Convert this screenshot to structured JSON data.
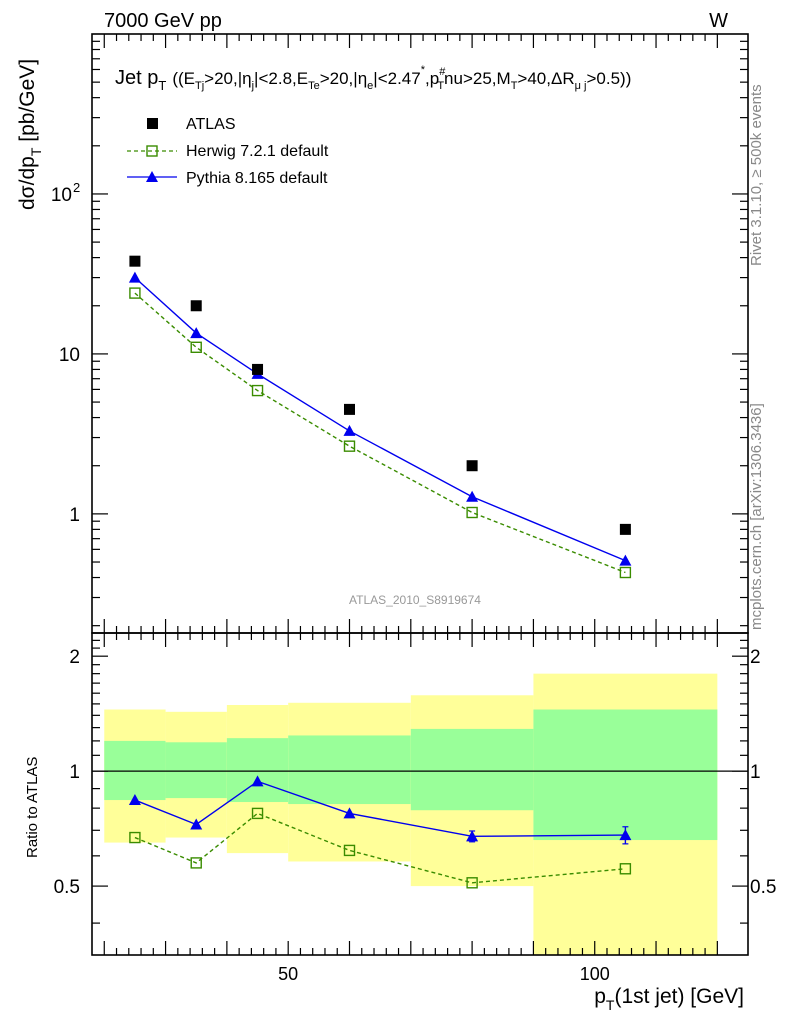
{
  "header": {
    "left": "7000 GeV pp",
    "right": "W"
  },
  "side_labels": {
    "rivet": "Rivet 3.1.10, ≥ 500k events",
    "mcplots": "mcplots.cern.ch [arXiv:1306.3436]"
  },
  "analysis_id": "ATLAS_2010_S8919674",
  "colors": {
    "atlas": "#000000",
    "herwig": "#3a8c00",
    "pythia": "#0000ee",
    "band_yellow": "#ffff99",
    "band_green": "#99ff99"
  },
  "chart_data": [
    {
      "type": "scatter",
      "title": "Jet p_T ((E_Tj>20,|η_j|<2.8,E_Te>20,|η_e|<2.47^*,p_T^#nu>25,M_T>40,ΔR_μj>0.5))",
      "title_parts": {
        "main": "Jet p",
        "main_sub": "T",
        "cut": "((E",
        "s1": "Tj",
        "t1": ">20,|η",
        "s2": "j",
        "t2": "|<2.8,E",
        "s3": "Te",
        "t3": ">20,|η",
        "s4": "e",
        "t4": "|<2.47",
        "sup4": "*",
        "t5": ",p",
        "sup5": "#",
        "s5": "T",
        "t6": "nu>25,M",
        "s6": "T",
        "t7": ">40,ΔR",
        "s7": "μ j",
        "t8": ">0.5))"
      },
      "ylabel": "dσ/dp_T [pb/GeV]",
      "ylabel_parts": {
        "a": "dσ/dp",
        "sub": "T",
        "b": " [pb/GeV]"
      },
      "yscale": "log",
      "ylim": [
        0.18,
        1000
      ],
      "xlim": [
        18,
        125
      ],
      "ytick_labels": [
        {
          "value": 1,
          "label": "1"
        },
        {
          "value": 10,
          "label": "10"
        },
        {
          "value": 100,
          "label": "10",
          "sup": "2"
        }
      ],
      "legend": {
        "placement": "top-left",
        "entries": [
          "ATLAS",
          "Herwig 7.2.1 default",
          "Pythia 8.165 default"
        ]
      },
      "series": [
        {
          "name": "ATLAS",
          "marker": "square-filled",
          "x": [
            25,
            35,
            45,
            60,
            80,
            105
          ],
          "y": [
            38,
            20,
            8.0,
            4.5,
            2.0,
            0.8
          ]
        },
        {
          "name": "Herwig 7.2.1 default",
          "marker": "square-open",
          "line": "dashed",
          "x": [
            25,
            35,
            45,
            60,
            80,
            105
          ],
          "y": [
            24,
            11,
            5.9,
            2.65,
            1.02,
            0.43
          ]
        },
        {
          "name": "Pythia 8.165 default",
          "marker": "triangle",
          "line": "solid",
          "x": [
            25,
            35,
            45,
            60,
            80,
            105
          ],
          "y": [
            30,
            13.5,
            7.5,
            3.3,
            1.28,
            0.51
          ]
        }
      ]
    },
    {
      "type": "line",
      "ylabel": "Ratio to ATLAS",
      "xlabel": "p_T(1st jet) [GeV]",
      "xlabel_parts": {
        "a": "p",
        "sub": "T",
        "b": "(1st jet) [GeV]"
      },
      "xlim": [
        18,
        125
      ],
      "ylim": [
        0.33,
        2.3
      ],
      "yscale": "log",
      "xticks": [
        {
          "value": 50,
          "label": "50"
        },
        {
          "value": 100,
          "label": "100"
        }
      ],
      "yticks": [
        {
          "value": 0.5,
          "label": "0.5"
        },
        {
          "value": 1,
          "label": "1"
        },
        {
          "value": 2,
          "label": "2"
        }
      ],
      "reference_line": 1,
      "bands": [
        {
          "x0": 20,
          "x1": 30,
          "yellow": [
            0.65,
            1.45
          ],
          "green": [
            0.84,
            1.2
          ]
        },
        {
          "x0": 30,
          "x1": 40,
          "yellow": [
            0.67,
            1.43
          ],
          "green": [
            0.85,
            1.19
          ]
        },
        {
          "x0": 40,
          "x1": 50,
          "yellow": [
            0.61,
            1.49
          ],
          "green": [
            0.83,
            1.22
          ]
        },
        {
          "x0": 50,
          "x1": 70,
          "yellow": [
            0.58,
            1.51
          ],
          "green": [
            0.82,
            1.24
          ]
        },
        {
          "x0": 70,
          "x1": 90,
          "yellow": [
            0.5,
            1.58
          ],
          "green": [
            0.79,
            1.29
          ]
        },
        {
          "x0": 90,
          "x1": 120,
          "yellow": [
            0.33,
            1.8
          ],
          "green": [
            0.66,
            1.45
          ]
        }
      ],
      "series": [
        {
          "name": "Herwig 7.2.1 default",
          "marker": "square-open",
          "line": "dashed",
          "x": [
            25,
            35,
            45,
            60,
            80,
            105
          ],
          "y": [
            0.67,
            0.575,
            0.775,
            0.62,
            0.51,
            0.555
          ]
        },
        {
          "name": "Pythia 8.165 default",
          "marker": "triangle",
          "line": "solid",
          "x": [
            25,
            35,
            45,
            60,
            80,
            105
          ],
          "y": [
            0.84,
            0.725,
            0.94,
            0.775,
            0.675,
            0.68
          ],
          "yerr": [
            0,
            0,
            0,
            0,
            0.022,
            0.035
          ]
        }
      ]
    }
  ]
}
